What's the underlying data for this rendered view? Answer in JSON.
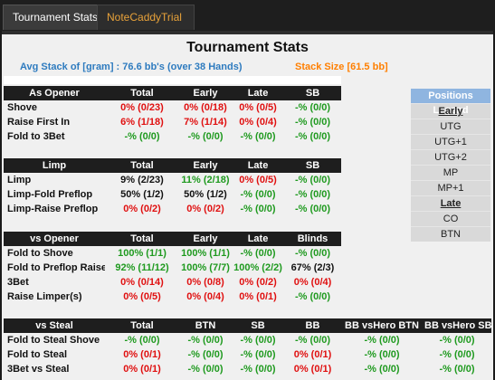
{
  "tabs": [
    {
      "label": "Tournament Stats"
    },
    {
      "label": "NoteCaddyTrial"
    }
  ],
  "header": {
    "title": "Tournament Stats",
    "avg_stack": "Avg Stack of [gram] : 76.6 bb's (over 38 Hands)",
    "stack_size": "Stack Size [61.5 bb]"
  },
  "colors": {
    "accent_blue": "#2e7bbf",
    "accent_orange": "#ff7f00",
    "good": "#1f9a1f",
    "bad": "#e01010"
  },
  "legend": {
    "title": "Positions Legend",
    "items": [
      {
        "label": "Early",
        "heading": true
      },
      {
        "label": "UTG"
      },
      {
        "label": "UTG+1"
      },
      {
        "label": "UTG+2"
      },
      {
        "label": "MP"
      },
      {
        "label": "MP+1"
      },
      {
        "label": "Late",
        "heading": true
      },
      {
        "label": "CO"
      },
      {
        "label": "BTN"
      }
    ]
  },
  "sections": {
    "opener": {
      "headers": [
        "As Opener",
        "Total",
        "Early",
        "Late",
        "SB"
      ],
      "rows": [
        {
          "label": "Shove",
          "cells": [
            {
              "v": "0% (0/23)",
              "c": "red"
            },
            {
              "v": "0% (0/18)",
              "c": "red"
            },
            {
              "v": "0% (0/5)",
              "c": "red"
            },
            {
              "v": "-% (0/0)",
              "c": "green"
            }
          ]
        },
        {
          "label": "Raise First In",
          "cells": [
            {
              "v": "6% (1/18)",
              "c": "red"
            },
            {
              "v": "7% (1/14)",
              "c": "red"
            },
            {
              "v": "0% (0/4)",
              "c": "red"
            },
            {
              "v": "-% (0/0)",
              "c": "green"
            }
          ]
        },
        {
          "label": "Fold to 3Bet",
          "cells": [
            {
              "v": "-% (0/0)",
              "c": "green"
            },
            {
              "v": "-% (0/0)",
              "c": "green"
            },
            {
              "v": "-% (0/0)",
              "c": "green"
            },
            {
              "v": "-% (0/0)",
              "c": "green"
            }
          ]
        }
      ]
    },
    "limp": {
      "headers": [
        "Limp",
        "Total",
        "Early",
        "Late",
        "SB"
      ],
      "rows": [
        {
          "label": "Limp",
          "cells": [
            {
              "v": "9% (2/23)",
              "c": "black"
            },
            {
              "v": "11% (2/18)",
              "c": "green"
            },
            {
              "v": "0% (0/5)",
              "c": "red"
            },
            {
              "v": "-% (0/0)",
              "c": "green"
            }
          ]
        },
        {
          "label": "Limp-Fold Preflop",
          "cells": [
            {
              "v": "50% (1/2)",
              "c": "black"
            },
            {
              "v": "50% (1/2)",
              "c": "black"
            },
            {
              "v": "-% (0/0)",
              "c": "green"
            },
            {
              "v": "-% (0/0)",
              "c": "green"
            }
          ]
        },
        {
          "label": "Limp-Raise Preflop",
          "cells": [
            {
              "v": "0% (0/2)",
              "c": "red"
            },
            {
              "v": "0% (0/2)",
              "c": "red"
            },
            {
              "v": "-% (0/0)",
              "c": "green"
            },
            {
              "v": "-% (0/0)",
              "c": "green"
            }
          ]
        }
      ]
    },
    "vs_opener": {
      "headers": [
        "vs Opener",
        "Total",
        "Early",
        "Late",
        "Blinds"
      ],
      "rows": [
        {
          "label": "Fold to Shove",
          "cells": [
            {
              "v": "100% (1/1)",
              "c": "green"
            },
            {
              "v": "100% (1/1)",
              "c": "green"
            },
            {
              "v": "-% (0/0)",
              "c": "green"
            },
            {
              "v": "-% (0/0)",
              "c": "green"
            }
          ]
        },
        {
          "label": "Fold to Preflop Raise",
          "cells": [
            {
              "v": "92% (11/12)",
              "c": "green"
            },
            {
              "v": "100% (7/7)",
              "c": "green"
            },
            {
              "v": "100% (2/2)",
              "c": "green"
            },
            {
              "v": "67% (2/3)",
              "c": "black"
            }
          ]
        },
        {
          "label": "3Bet",
          "cells": [
            {
              "v": "0% (0/14)",
              "c": "red"
            },
            {
              "v": "0% (0/8)",
              "c": "red"
            },
            {
              "v": "0% (0/2)",
              "c": "red"
            },
            {
              "v": "0% (0/4)",
              "c": "red"
            }
          ]
        },
        {
          "label": "Raise Limper(s)",
          "cells": [
            {
              "v": "0% (0/5)",
              "c": "red"
            },
            {
              "v": "0% (0/4)",
              "c": "red"
            },
            {
              "v": "0% (0/1)",
              "c": "red"
            },
            {
              "v": "-% (0/0)",
              "c": "green"
            }
          ]
        }
      ]
    },
    "vs_steal": {
      "headers": [
        "vs Steal",
        "Total",
        "BTN",
        "SB",
        "BB",
        "BB vsHero BTN",
        "BB vsHero SB"
      ],
      "rows": [
        {
          "label": "Fold to Steal Shove",
          "cells": [
            {
              "v": "-% (0/0)",
              "c": "green"
            },
            {
              "v": "-% (0/0)",
              "c": "green"
            },
            {
              "v": "-% (0/0)",
              "c": "green"
            },
            {
              "v": "-% (0/0)",
              "c": "green"
            },
            {
              "v": "-% (0/0)",
              "c": "green"
            },
            {
              "v": "-% (0/0)",
              "c": "green"
            }
          ]
        },
        {
          "label": "Fold to Steal",
          "cells": [
            {
              "v": "0% (0/1)",
              "c": "red"
            },
            {
              "v": "-% (0/0)",
              "c": "green"
            },
            {
              "v": "-% (0/0)",
              "c": "green"
            },
            {
              "v": "0% (0/1)",
              "c": "red"
            },
            {
              "v": "-% (0/0)",
              "c": "green"
            },
            {
              "v": "-% (0/0)",
              "c": "green"
            }
          ]
        },
        {
          "label": "3Bet vs Steal",
          "cells": [
            {
              "v": "0% (0/1)",
              "c": "red"
            },
            {
              "v": "-% (0/0)",
              "c": "green"
            },
            {
              "v": "-% (0/0)",
              "c": "green"
            },
            {
              "v": "0% (0/1)",
              "c": "red"
            },
            {
              "v": "-% (0/0)",
              "c": "green"
            },
            {
              "v": "-% (0/0)",
              "c": "green"
            }
          ]
        }
      ]
    }
  }
}
